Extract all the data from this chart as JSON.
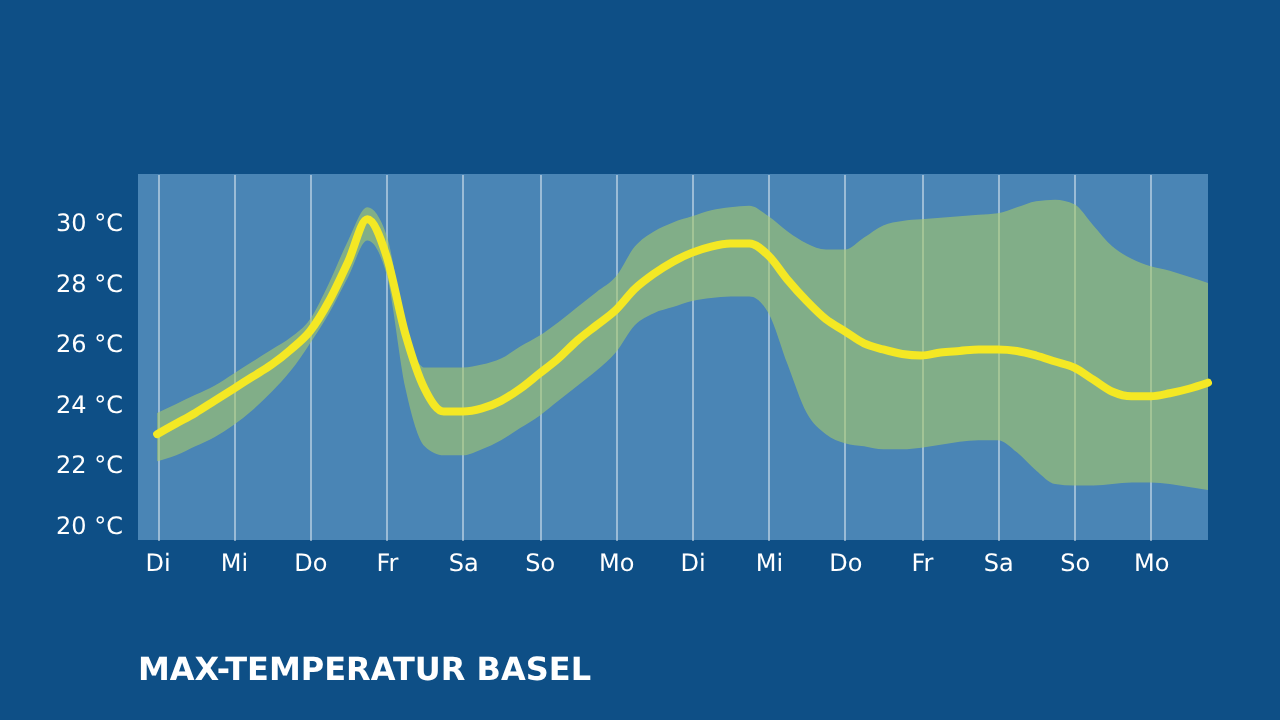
{
  "chart_data": {
    "type": "line",
    "title": "MAX-TEMPERATUR BASEL",
    "categories": [
      "Di",
      null,
      null,
      null,
      "Mi",
      null,
      null,
      null,
      "Do",
      null,
      null,
      null,
      "Fr",
      null,
      null,
      null,
      "Sa",
      null,
      null,
      null,
      "So",
      null,
      null,
      null,
      "Mo",
      null,
      null,
      null,
      "Di",
      null,
      null,
      null,
      "Mi",
      null,
      null,
      null,
      "Do",
      null,
      null,
      null,
      "Fr",
      null,
      null,
      null,
      "Sa",
      null,
      null,
      null,
      "So",
      null,
      null,
      null,
      "Mo",
      null,
      null,
      null
    ],
    "ylim": [
      19.5,
      31.6
    ],
    "yticks": [
      {
        "value": 20,
        "label": "20 °C"
      },
      {
        "value": 22,
        "label": "22 °C"
      },
      {
        "value": 24,
        "label": "24 °C"
      },
      {
        "value": 26,
        "label": "26 °C"
      },
      {
        "value": 28,
        "label": "28 °C"
      },
      {
        "value": 30,
        "label": "30 °C"
      }
    ],
    "grid": "x",
    "marker": "none",
    "line_style": "solid",
    "series": [
      {
        "color": "#f4e824",
        "values": [
          23.0,
          23.35,
          23.7,
          24.1,
          24.5,
          24.9,
          25.3,
          25.8,
          26.4,
          27.4,
          28.7,
          30.1,
          28.9,
          26.3,
          24.5,
          23.75,
          23.75,
          23.85,
          24.1,
          24.5,
          25.0,
          25.5,
          26.1,
          26.6,
          27.1,
          27.8,
          28.3,
          28.7,
          29.0,
          29.2,
          29.3,
          29.3,
          28.9,
          28.1,
          27.4,
          26.8,
          26.4,
          26.0,
          25.8,
          25.65,
          25.6,
          25.7,
          25.75,
          25.8,
          25.8,
          25.75,
          25.6,
          25.4,
          25.2,
          24.8,
          24.4,
          24.25,
          24.25,
          24.35,
          24.5,
          24.7
        ],
        "upper": [
          23.7,
          24.0,
          24.3,
          24.6,
          25.0,
          25.4,
          25.8,
          26.2,
          26.8,
          28.0,
          29.4,
          30.5,
          29.6,
          26.5,
          25.2,
          25.2,
          25.2,
          25.3,
          25.5,
          25.9,
          26.25,
          26.7,
          27.2,
          27.7,
          28.2,
          29.2,
          29.7,
          30.0,
          30.2,
          30.4,
          30.5,
          30.55,
          30.2,
          29.7,
          29.3,
          29.1,
          29.1,
          29.5,
          29.9,
          30.05,
          30.1,
          30.15,
          30.2,
          30.25,
          30.3,
          30.5,
          30.7,
          30.75,
          30.6,
          29.9,
          29.2,
          28.8,
          28.55,
          28.4,
          28.2,
          28.0
        ],
        "lower": [
          22.1,
          22.3,
          22.6,
          22.9,
          23.3,
          23.8,
          24.4,
          25.1,
          26.0,
          27.0,
          28.2,
          29.4,
          28.3,
          24.5,
          22.6,
          22.3,
          22.3,
          22.5,
          22.8,
          23.2,
          23.6,
          24.1,
          24.6,
          25.1,
          25.7,
          26.6,
          27.0,
          27.2,
          27.4,
          27.5,
          27.55,
          27.55,
          27.0,
          25.3,
          23.7,
          23.0,
          22.7,
          22.6,
          22.5,
          22.5,
          22.55,
          22.65,
          22.75,
          22.8,
          22.8,
          22.4,
          21.8,
          21.35,
          21.3,
          21.3,
          21.35,
          21.4,
          21.4,
          21.35,
          21.25,
          21.15
        ]
      }
    ]
  }
}
